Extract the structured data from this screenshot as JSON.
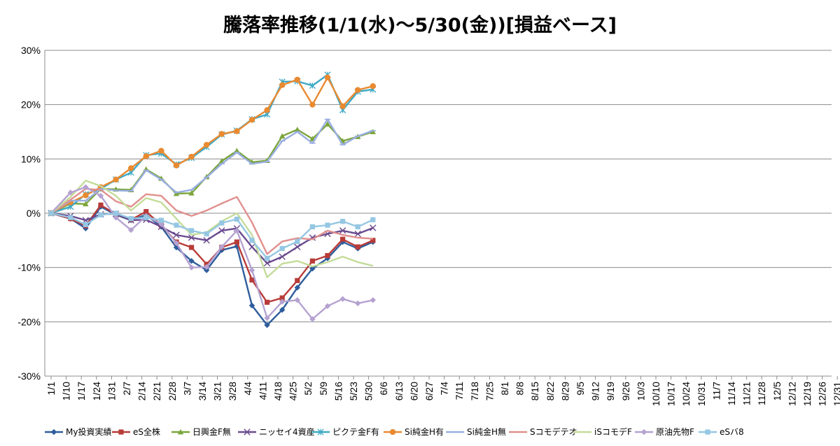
{
  "chart_data": {
    "type": "line",
    "title": "騰落率推移(1/1(水)～5/30(金))[損益ベース]",
    "xlabel": "",
    "ylabel": "",
    "ylim": [
      -30,
      30
    ],
    "yticks": [
      -30,
      -20,
      -10,
      0,
      10,
      20,
      30
    ],
    "ytick_labels": [
      "-30%",
      "-20%",
      "-10%",
      "0%",
      "10%",
      "20%",
      "30%"
    ],
    "grid": "horizontal major gridlines",
    "legend_position": "bottom",
    "x_tick_labels": [
      "1/1",
      "1/10",
      "1/17",
      "1/24",
      "1/31",
      "2/7",
      "2/14",
      "2/21",
      "2/28",
      "3/7",
      "3/14",
      "3/21",
      "3/28",
      "4/4",
      "4/11",
      "4/18",
      "4/25",
      "5/2",
      "5/9",
      "5/16",
      "5/23",
      "5/30",
      "6/6",
      "6/13",
      "6/20",
      "6/27",
      "7/4",
      "7/11",
      "7/18",
      "7/25",
      "8/1",
      "8/8",
      "8/15",
      "8/22",
      "8/29",
      "9/5",
      "9/12",
      "9/19",
      "9/26",
      "10/3",
      "10/10",
      "10/17",
      "10/24",
      "10/31",
      "11/7",
      "11/14",
      "11/21",
      "11/28",
      "12/5",
      "12/12",
      "12/19",
      "12/26",
      "12/31"
    ],
    "x": [
      "1/1",
      "1/6",
      "1/10",
      "1/14",
      "1/17",
      "1/21",
      "1/24",
      "1/28",
      "1/31",
      "2/4",
      "2/7",
      "2/10",
      "2/14",
      "2/18",
      "2/21",
      "2/25",
      "2/28",
      "3/3",
      "3/7",
      "3/10",
      "3/14",
      "3/17",
      "3/21",
      "3/24",
      "3/28",
      "3/31",
      "4/4",
      "4/7",
      "4/11",
      "4/14",
      "4/18",
      "4/21",
      "4/25",
      "4/28",
      "5/2",
      "5/5",
      "5/9",
      "5/12",
      "5/16",
      "5/19",
      "5/23",
      "5/26",
      "5/30"
    ],
    "series": [
      {
        "name": "My投資実績",
        "color": "#2e5d9c",
        "marker": "diamond",
        "values": [
          0,
          null,
          -1,
          null,
          -2.8,
          null,
          1.2,
          null,
          -0.3,
          null,
          -1.3,
          null,
          -0.3,
          null,
          -2.5,
          null,
          -6.3,
          null,
          -8.8,
          null,
          -10.5,
          null,
          -6.8,
          null,
          -6.1,
          null,
          -17,
          null,
          -20.6,
          null,
          -17.8,
          null,
          -13.7,
          null,
          -10.2,
          null,
          -8.3,
          null,
          -5.3,
          null,
          -6.5,
          null,
          -5.3
        ]
      },
      {
        "name": "eS全株",
        "color": "#b83b38",
        "marker": "square",
        "values": [
          0,
          null,
          -1,
          null,
          -2.3,
          null,
          1.5,
          null,
          -0.2,
          null,
          -1.2,
          null,
          0.3,
          null,
          -2.2,
          null,
          -5.3,
          null,
          -6.3,
          null,
          -9.4,
          null,
          -6.3,
          null,
          -5.3,
          null,
          -12.3,
          null,
          -16.4,
          null,
          -15.6,
          null,
          -12.4,
          null,
          -8.8,
          null,
          -7.8,
          null,
          -4.8,
          null,
          -6.2,
          null,
          -5
        ]
      },
      {
        "name": "日興金F無",
        "color": "#7aa53a",
        "marker": "triangle",
        "values": [
          0,
          null,
          1.8,
          null,
          1.7,
          null,
          4.5,
          null,
          4.4,
          null,
          4.3,
          null,
          8.1,
          null,
          6.4,
          null,
          3.6,
          null,
          3.7,
          null,
          6.7,
          null,
          9.6,
          null,
          11.5,
          null,
          9.4,
          null,
          9.7,
          null,
          14.2,
          null,
          15.4,
          null,
          13.7,
          null,
          16.4,
          null,
          13.3,
          null,
          14.1,
          null,
          15
        ]
      },
      {
        "name": "ニッセイ4資産",
        "color": "#6a4a8e",
        "marker": "x",
        "values": [
          0,
          null,
          -0.5,
          null,
          -1.3,
          null,
          -0.2,
          null,
          -0.1,
          null,
          -1.3,
          null,
          -1.2,
          null,
          -2.5,
          null,
          -4,
          null,
          -4.5,
          null,
          -5,
          null,
          -3.2,
          null,
          -2.8,
          null,
          -6.2,
          null,
          -9.2,
          null,
          -8,
          null,
          -6.2,
          null,
          -4.5,
          null,
          -3.8,
          null,
          -3.2,
          null,
          -3.8,
          null,
          -2.7
        ]
      },
      {
        "name": "ピクテ金F有",
        "color": "#3fa9c4",
        "marker": "star",
        "values": [
          0,
          null,
          1.2,
          null,
          3.5,
          null,
          4.5,
          null,
          6.2,
          null,
          7.5,
          null,
          10.7,
          null,
          11,
          null,
          9,
          null,
          10.2,
          null,
          12.2,
          null,
          14.5,
          null,
          15.2,
          null,
          17.3,
          null,
          18.2,
          null,
          24.2,
          null,
          24.3,
          null,
          23.5,
          null,
          25.5,
          null,
          19,
          null,
          22.4,
          null,
          22.8
        ]
      },
      {
        "name": "Si純金H有",
        "color": "#e98a31",
        "marker": "circle",
        "values": [
          0,
          null,
          2,
          null,
          3.3,
          null,
          4.8,
          null,
          6.2,
          null,
          8.3,
          null,
          10.5,
          null,
          11.5,
          null,
          8.8,
          null,
          10.4,
          null,
          12.6,
          null,
          14.6,
          null,
          15.1,
          null,
          17.2,
          null,
          19,
          null,
          23.6,
          null,
          24.6,
          null,
          20,
          null,
          25,
          null,
          19.7,
          null,
          22.7,
          null,
          23.4
        ]
      },
      {
        "name": "Si純金H無",
        "color": "#9aaee0",
        "marker": "dash",
        "values": [
          0,
          null,
          2.3,
          null,
          2.3,
          null,
          4.5,
          null,
          4.2,
          null,
          4.1,
          null,
          7.9,
          null,
          6.2,
          null,
          3.8,
          null,
          4.3,
          null,
          6.6,
          null,
          9.1,
          null,
          11.2,
          null,
          9.1,
          null,
          9.5,
          null,
          13.3,
          null,
          15,
          null,
          12.9,
          null,
          17.3,
          null,
          12.6,
          null,
          14.2,
          null,
          15.2
        ]
      },
      {
        "name": "Sコモデテオ",
        "color": "#e0908e",
        "marker": "none",
        "values": [
          0,
          null,
          2.5,
          null,
          4.5,
          null,
          4.3,
          null,
          2.2,
          null,
          1.2,
          null,
          3.5,
          null,
          3.2,
          null,
          0.5,
          null,
          -0.5,
          null,
          0.5,
          null,
          1.8,
          null,
          3,
          null,
          -1.7,
          null,
          -7.5,
          null,
          -5.2,
          null,
          -4.6,
          null,
          -4.8,
          null,
          -3.2,
          null,
          -4,
          null,
          -4.5,
          null,
          -4.7
        ]
      },
      {
        "name": "iSコモデF",
        "color": "#c4dc9a",
        "marker": "none",
        "values": [
          0,
          null,
          3,
          null,
          6,
          null,
          5,
          null,
          3.2,
          null,
          0.5,
          null,
          2.8,
          null,
          2,
          null,
          -1,
          null,
          -4,
          null,
          -3.5,
          null,
          -1.5,
          null,
          0,
          null,
          -4,
          null,
          -11.8,
          null,
          -9.3,
          null,
          -8.8,
          null,
          -9.8,
          null,
          -9,
          null,
          -8,
          null,
          -9,
          null,
          -9.7
        ]
      },
      {
        "name": "原油先物F",
        "color": "#b5a2d1",
        "marker": "diamond",
        "values": [
          0,
          null,
          3.8,
          null,
          4.8,
          null,
          3.2,
          null,
          -0.8,
          null,
          -3.1,
          null,
          -0.5,
          null,
          -2,
          null,
          -5.5,
          null,
          -10,
          null,
          -9.9,
          null,
          -6.2,
          null,
          -3.2,
          null,
          -10.5,
          null,
          -19.3,
          null,
          -16.3,
          null,
          -16,
          null,
          -19.5,
          null,
          -17.1,
          null,
          -15.8,
          null,
          -16.6,
          null,
          -16
        ]
      },
      {
        "name": "eSバ8",
        "color": "#95c7e3",
        "marker": "square",
        "values": [
          0,
          null,
          -0.8,
          null,
          -2.1,
          null,
          -0.3,
          null,
          0,
          null,
          -1,
          null,
          -0.8,
          null,
          -1.3,
          null,
          -2.2,
          null,
          -3.2,
          null,
          -3.8,
          null,
          -1.8,
          null,
          -1.1,
          null,
          -5,
          null,
          -8.3,
          null,
          -6.5,
          null,
          -5.2,
          null,
          -2.5,
          null,
          -2.2,
          null,
          -1.5,
          null,
          -2.5,
          null,
          -1.2
        ]
      }
    ]
  }
}
